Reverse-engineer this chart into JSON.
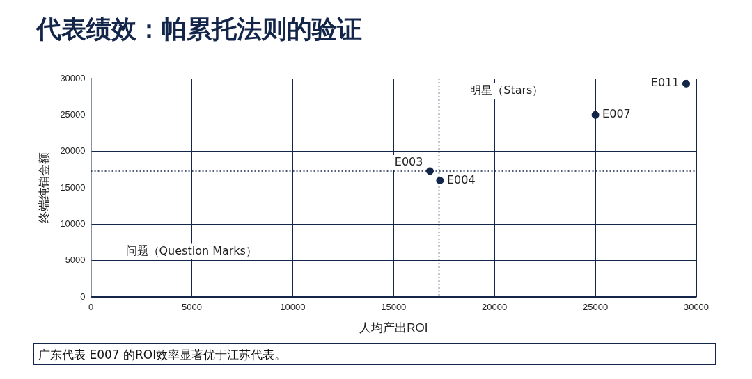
{
  "chart_data": {
    "type": "scatter",
    "title": "代表绩效：帕累托法则的验证",
    "xlabel": "人均产出ROI",
    "ylabel": "终端纯销金额",
    "x": [
      29500,
      25000,
      16800,
      17300
    ],
    "values": [
      29300,
      25000,
      17300,
      16000
    ],
    "value_labels": [
      "E011",
      "E007",
      "E003",
      "E004"
    ],
    "color": "#14254a",
    "marker": "circle",
    "xlim": [
      0,
      30000
    ],
    "xticks": [
      0,
      5000,
      10000,
      15000,
      20000,
      25000,
      30000
    ],
    "ylim": [
      0,
      30000
    ],
    "yticks": [
      0,
      5000,
      10000,
      15000,
      20000,
      25000,
      30000
    ],
    "grid": true,
    "ref_lines": [
      {
        "axis": "x",
        "value": 17250,
        "line_style": "dotted",
        "color": "#14254a"
      },
      {
        "axis": "y",
        "value": 17300,
        "line_style": "dotted",
        "color": "#14254a"
      }
    ],
    "annotations": [
      "明星（Stars）",
      "问题（Question Marks）",
      "广东代表 E007 的ROI效率显著优于江苏代表。"
    ]
  }
}
